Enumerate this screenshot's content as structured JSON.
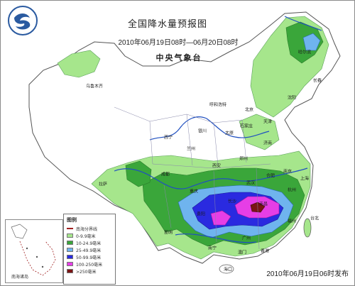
{
  "header": {
    "title": "全国降水量预报图",
    "period": "2010年06月19日08时—06月20日08时",
    "agency": "中央气象台"
  },
  "footer": {
    "issued": "2010年06月19日06时发布"
  },
  "legend": {
    "title": "图例",
    "boundary_label": "南海分界线",
    "items": [
      {
        "label": "0-9.9毫米",
        "color": "#a6e68c"
      },
      {
        "label": "10-24.9毫米",
        "color": "#3aa63a"
      },
      {
        "label": "25-49.9毫米",
        "color": "#6fb4ee"
      },
      {
        "label": "50-99.9毫米",
        "color": "#2a2ae0"
      },
      {
        "label": "100-250毫米",
        "color": "#e63ee6"
      },
      {
        "label": ">250毫米",
        "color": "#7a1414"
      }
    ]
  },
  "inset": {
    "label": "南海诸岛"
  },
  "cities": [
    {
      "name": "乌鲁木齐"
    },
    {
      "name": "哈尔滨"
    },
    {
      "name": "长春"
    },
    {
      "name": "沈阳"
    },
    {
      "name": "呼和浩特"
    },
    {
      "name": "北京"
    },
    {
      "name": "天津"
    },
    {
      "name": "石家庄"
    },
    {
      "name": "太原"
    },
    {
      "name": "银川"
    },
    {
      "name": "西宁"
    },
    {
      "name": "兰州"
    },
    {
      "name": "济南"
    },
    {
      "name": "郑州"
    },
    {
      "name": "西安"
    },
    {
      "name": "南京"
    },
    {
      "name": "合肥"
    },
    {
      "name": "上海"
    },
    {
      "name": "武汉"
    },
    {
      "name": "杭州"
    },
    {
      "name": "成都"
    },
    {
      "name": "拉萨"
    },
    {
      "name": "重庆"
    },
    {
      "name": "长沙"
    },
    {
      "name": "南昌"
    },
    {
      "name": "福州"
    },
    {
      "name": "贵阳"
    },
    {
      "name": "昆明"
    },
    {
      "name": "南宁"
    },
    {
      "name": "广州"
    },
    {
      "name": "澳门"
    },
    {
      "name": "香港"
    },
    {
      "name": "海口"
    },
    {
      "name": "台北"
    }
  ]
}
